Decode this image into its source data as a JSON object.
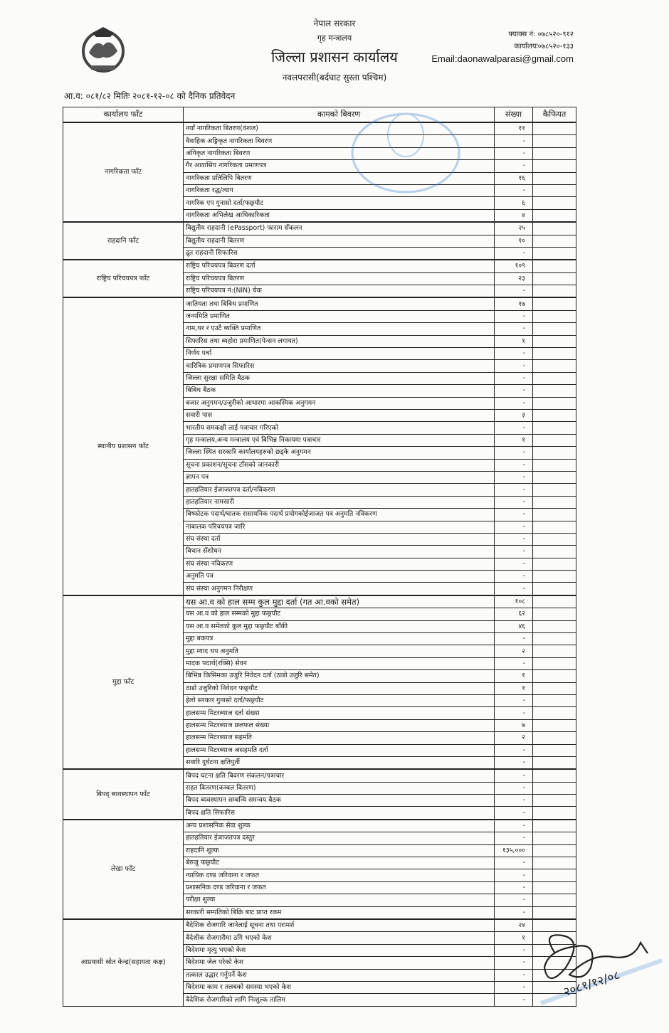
{
  "header": {
    "line1": "नेपाल सरकार",
    "line2": "गृह मन्त्रालय",
    "office": "जिल्ला प्रशासन कार्यालय",
    "location": "नवलपरासी(बर्दघाट सुस्ता पश्चिम)",
    "fax": "फ्याक्स नं: ०७८५२०-९१२",
    "phone": "कार्यालयः०७८५२०-१३३",
    "email": "Email:daonawalparasi@gmail.com"
  },
  "report_title": "आ.व: ०८१/८२ मितिः २०८१-१२-०८ को दैनिक प्रतिवेदन",
  "table": {
    "columns": [
      "कार्यालय फाँट",
      "कामको बिवरण",
      "संख्या",
      "कैफियत"
    ],
    "groups": [
      {
        "dept": "नागरिकता फाँट",
        "rows": [
          [
            "नयाँ नागरिकता बितरण(वंशज)",
            "११"
          ],
          [
            "वैवाहिक अङ्गिकृत नागरिकता बिवरण",
            "-"
          ],
          [
            "अंगिकृत नागरिकता बिवरण",
            "-"
          ],
          [
            "गैर आवासिय नागरिकता प्रमाणपत्र",
            "-"
          ],
          [
            "नागरिकता प्रतिलिपि बितरण",
            "१६"
          ],
          [
            "नागरिकता रद्ध/त्याग",
            "-"
          ],
          [
            "नागरिक एप गुनासो दर्ता/फछ्र्यौट",
            "६"
          ],
          [
            "नागरिकता अभिलेख आधिकारिकता",
            "४"
          ]
        ]
      },
      {
        "dept": "राहदानि फाँट",
        "rows": [
          [
            "बिद्युतीय राहदानी (ePassport) फाराम सँकलन",
            "२५"
          ],
          [
            "बिद्युतीय राहदानी बितरण",
            "१०"
          ],
          [
            "द्रुत राहदानी सिफारिस",
            "-"
          ]
        ]
      },
      {
        "dept": "राष्ट्रिय परिचयपत्र फाँट",
        "rows": [
          [
            "राष्ट्रिय परिचयपत्र बिवरण दर्ता",
            "१०९"
          ],
          [
            "राष्ट्रिय परिचयपत्र बितरण",
            "२३"
          ],
          [
            "राष्ट्रिय परिचयपत्र नं:(NIN) चेक",
            "-"
          ]
        ]
      },
      {
        "dept": "स्थानीय प्रशासन फाँट",
        "rows": [
          [
            "जातियता तथा बिबिध प्रमाणित",
            "१७"
          ],
          [
            "जन्ममिति प्रमाणित",
            "-"
          ],
          [
            "नाम,थर र एउटै ब्यक्ति प्रमाणित",
            "-"
          ],
          [
            "सिफारिस तथा ब्यहोरा प्रमाणित(पेन्सन लगायत)",
            "१"
          ],
          [
            "निर्णय पर्चा",
            "-"
          ],
          [
            "चारित्रिक प्रमाणपत्र सिफारिस",
            "-"
          ],
          [
            "जिल्ला सुरक्षा समिति बैठक",
            "-"
          ],
          [
            "बिबिध बैठक",
            "-"
          ],
          [
            "बजार अनुगमन/उजुरीको आधारमा आकस्मिक अनुगमन",
            "-"
          ],
          [
            "सवारी पास",
            "३"
          ],
          [
            "भारतीय समकक्षी लाई पत्राचार गरिएको",
            "-"
          ],
          [
            "गृह मन्त्रालय,अन्य मन्त्रालय एवं बिभिन्न निकायमा पत्राचार",
            "१"
          ],
          [
            "जिल्ला स्थित सरकारि कार्यालयहरुको छड्के अनुगमन",
            "-"
          ],
          [
            "सूचना प्रकाशन/सूचना टाँसको जानकारी",
            "-"
          ],
          [
            "ज्ञापन पत्र",
            "-"
          ],
          [
            "हातहतियार ईजाजतपत्र दर्ता/नविकरण",
            "-"
          ],
          [
            "हातहतियार नामसारी",
            "-"
          ],
          [
            "बिष्फोटक पदार्थ/घातक रासायनिक पदार्थ प्रयोगकोईजाजत पत्र अनुमति नविकरण",
            "-"
          ],
          [
            "नाबालक परिचयपत्र जारि",
            "-"
          ],
          [
            "संघ संस्था दर्ता",
            "-"
          ],
          [
            "बिधान सँशोधन",
            "-"
          ],
          [
            "संघ संस्था नविकरण",
            "-"
          ],
          [
            "अनुमति पत्र",
            "-"
          ],
          [
            "संघ संस्था अनुगमन निरीक्षण",
            "-"
          ]
        ]
      },
      {
        "dept": "मुद्दा फाँट",
        "rows": [
          [
            "यस आ.व को हाल सम्म कुल मुद्दा दर्ता (गत आ.वको समेत)",
            "१०८"
          ],
          [
            "यस आ.व को हाल सम्मको मुद्दा फछ्र्यौट",
            "६२"
          ],
          [
            "यस आ.व समेतको कुल मुद्दा फछ्र्यौट बाँकी",
            "४६"
          ],
          [
            "मुद्दा बकपत्र",
            "-"
          ],
          [
            "मुद्दा म्याद थप अनुमति",
            "२"
          ],
          [
            "मादक पदार्थ(रक्सि) सेवन",
            "-"
          ],
          [
            "बिभिन्न किसिमका उजुरि निवेदन दर्ता (ठाडो उजुरि समेत)",
            "१"
          ],
          [
            "ठाडो उजुरिको निवेदन फछ्र्यौट",
            "१"
          ],
          [
            "हेलो सरकार गुनासो दर्ता/फछ्र्यौट",
            "-"
          ],
          [
            "हालसम्म मिटरब्याज दर्ता संख्या",
            "-"
          ],
          [
            "हालसम्म मिटरब्याज छलफल संख्या",
            "७"
          ],
          [
            "हालसम्म मिटरब्याज सहमति",
            "२"
          ],
          [
            "हालसम्म मिटरब्याज असहमति दर्ता",
            "-"
          ],
          [
            "सवारि दुर्घटना क्षतिपुर्ती",
            "-"
          ]
        ]
      },
      {
        "dept": "बिपद् ब्यवस्थापन फाँट",
        "rows": [
          [
            "बिपद घटना क्षति बिवरण संकलन/पत्राचार",
            "-"
          ],
          [
            "राहत बितरण(कम्बल बितरण)",
            "-"
          ],
          [
            "बिपद ब्यवस्थापन सम्बन्धि समन्वय बैठक",
            "-"
          ],
          [
            "बिपद क्षति सिफारिस",
            "-"
          ]
        ]
      },
      {
        "dept": "लेखा फाँट",
        "rows": [
          [
            "अन्य प्रशासनिक सेवा शुल्क",
            "-"
          ],
          [
            "हातहतियार ईजाजतपत्र दस्तुर",
            "-"
          ],
          [
            "राहदानि शुल्क",
            "१३५,०००"
          ],
          [
            "बेरुजु फछ्र्यौट",
            "-"
          ],
          [
            "न्यायिक दण्ड जरिवाना र जफत",
            "-"
          ],
          [
            "प्रशासनिक दण्ड जरिवाना र जफत",
            "-"
          ],
          [
            "परीक्षा शुल्क",
            "-"
          ],
          [
            "सरकारी सम्पतिको बिक्रि बाट प्राप्त रकम",
            "-"
          ]
        ]
      },
      {
        "dept": "आप्रवासी स्रोत केन्द्र(सहायता कक्ष)",
        "rows": [
          [
            "बैदेशिक रोजगारि जानेलाई सूचना तथा परामर्श",
            "२४"
          ],
          [
            "बैदेशीक रोजगारीमा ठगि भएको केश",
            "१"
          ],
          [
            "बिदेशमा मृत्यु भएको केश",
            "-"
          ],
          [
            "बिदेशमा जेल परेको केश",
            "-"
          ],
          [
            "तत्काल उद्धार गर्नुपर्ने केश",
            "-"
          ],
          [
            "बिदेशमा काम र तलबको समस्या भएको केश",
            "-"
          ],
          [
            "बैदेशिक रोजगारिको लागि निःशुल्क तालिम",
            "-"
          ]
        ]
      }
    ]
  },
  "signature": {
    "date": "२०८१/१२/०८"
  },
  "colors": {
    "stamp": "#3a7fd0",
    "ink": "#1a1a1a"
  }
}
